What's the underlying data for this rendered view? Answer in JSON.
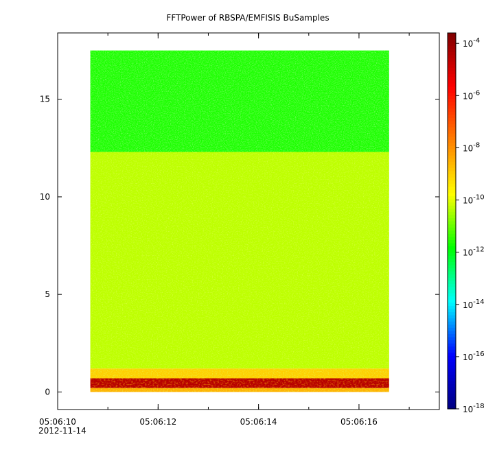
{
  "chart_data": {
    "type": "heatmap",
    "title": "FFTPower of RBSPA/EMFISIS  BuSamples",
    "xlabel": "",
    "ylabel": "",
    "x_axis": {
      "type": "time",
      "start": "05:06:10",
      "end": "05:06:17.6",
      "ticks": [
        "05:06:10",
        "05:06:12",
        "05:06:14",
        "05:06:16"
      ],
      "date_label": "2012-11-14",
      "minor_tick_seconds": 1
    },
    "y_axis": {
      "range": [
        -0.9,
        18.4
      ],
      "ticks": [
        0,
        5,
        10,
        15
      ]
    },
    "data_extent": {
      "x_start": "05:06:10.65",
      "x_end": "05:06:16.6",
      "y_range": [
        0,
        17.5
      ]
    },
    "colorbar": {
      "scale": "log",
      "range_exponents": [
        -18,
        -3.6
      ],
      "tick_base": "10",
      "tick_exponents": [
        "-18",
        "-16",
        "-14",
        "-12",
        "-10",
        "-8",
        "-6",
        "-4"
      ],
      "colors": [
        "#00007f",
        "#0000ff",
        "#00ffff",
        "#00ff00",
        "#ffff00",
        "#ff8000",
        "#ff0000",
        "#7f0000"
      ]
    },
    "bands": [
      {
        "y_range": [
          12.3,
          17.5
        ],
        "description": "upper band",
        "log_power": -11.6
      },
      {
        "y_range": [
          1.2,
          12.3
        ],
        "description": "middle band",
        "log_power": -10.3
      },
      {
        "y_range": [
          0.7,
          1.2
        ],
        "description": "low band",
        "log_power": -9.0
      },
      {
        "y_range": [
          0.2,
          0.7
        ],
        "description": "intense band",
        "log_power": -4.5
      },
      {
        "y_range": [
          0.0,
          0.2
        ],
        "description": "bottom band",
        "log_power": -8.5
      }
    ],
    "grid": false,
    "legend": "colorbar-right"
  }
}
